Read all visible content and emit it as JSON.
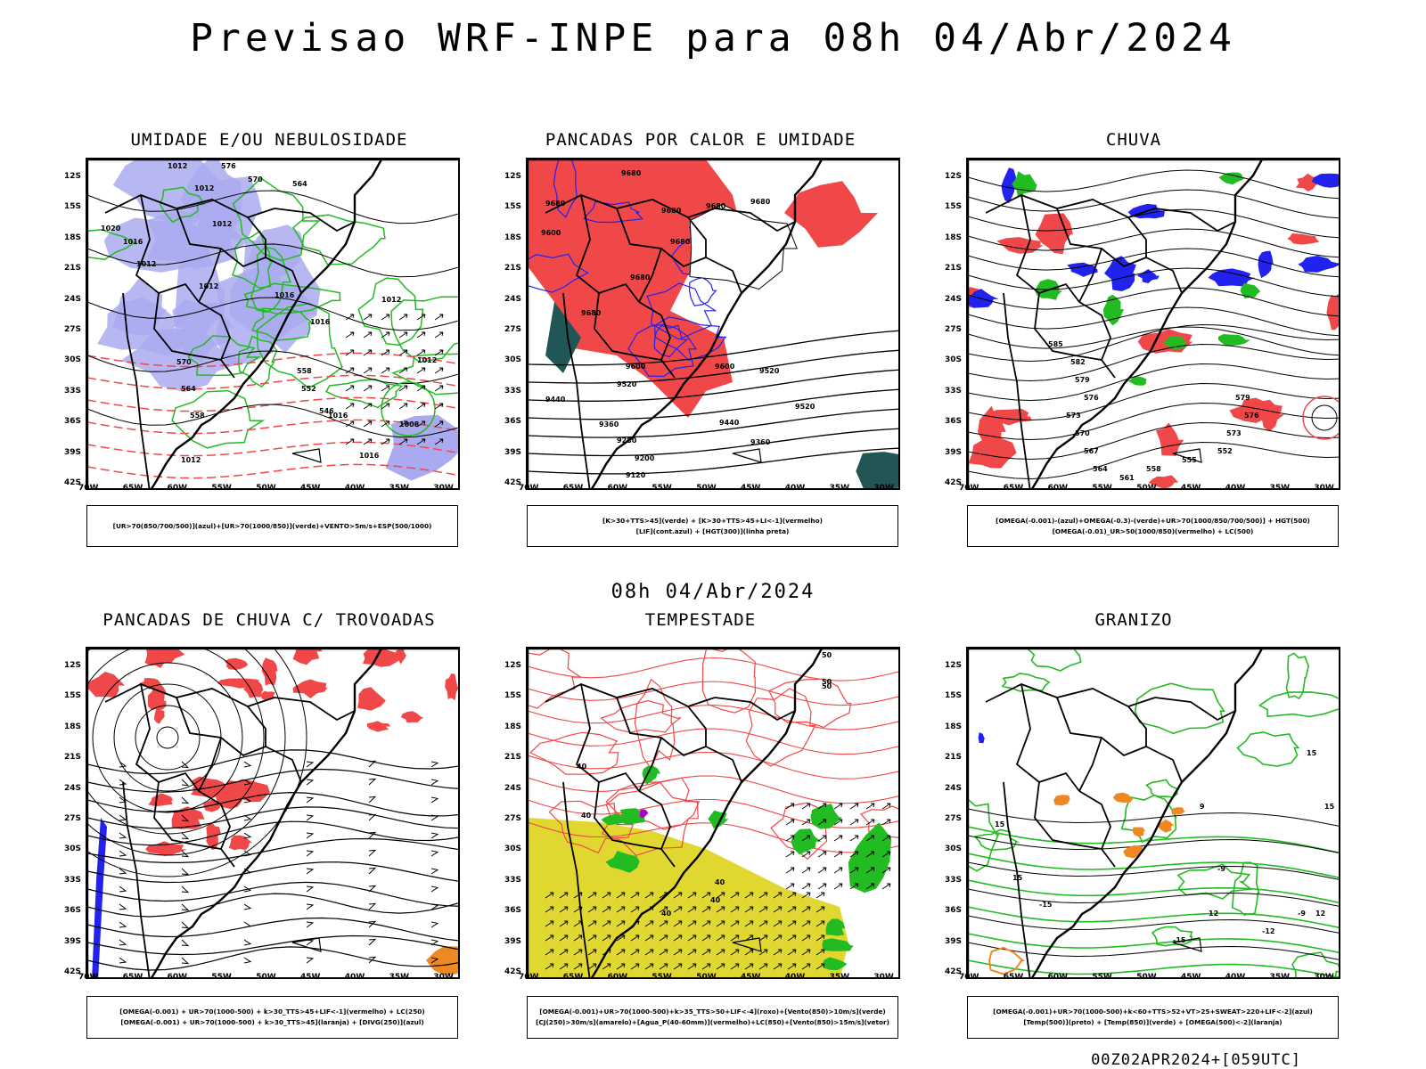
{
  "title": "Previsao WRF-INPE  para 08h 04/Abr/2024",
  "mid_date": "08h 04/Abr/2024",
  "footer": "00Z02APR2024+[059UTC]",
  "lat_ticks": [
    "12S",
    "15S",
    "18S",
    "21S",
    "24S",
    "27S",
    "30S",
    "33S",
    "36S",
    "39S",
    "42S"
  ],
  "lon_ticks": [
    "70W",
    "65W",
    "60W",
    "55W",
    "50W",
    "45W",
    "40W",
    "35W",
    "30W"
  ],
  "panels": [
    {
      "title": "UMIDADE E/OU NEBULOSIDADE",
      "legend": [
        "[UR>70(850/700/500)](azul)+[UR>70(1000/850)](verde)+VENTO>5m/s+ESP(500/1000)"
      ],
      "labels": [
        "1012",
        "1012",
        "1012",
        "1020",
        "1016",
        "1012",
        "1012",
        "1016",
        "1016",
        "1016",
        "1016",
        "1012",
        "1012",
        "1008",
        "1012",
        "576",
        "570",
        "564",
        "558",
        "552",
        "546",
        "570",
        "564",
        "558"
      ]
    },
    {
      "title": "PANCADAS POR CALOR E UMIDADE",
      "legend": [
        "[K>30+TTS>45](verde) + [K>30+TTS>45+LI<-1](vermelho)",
        "[LIF](cont.azul) + [HGT(300)](linha preta)"
      ],
      "labels": [
        "9680",
        "9680",
        "9680",
        "9680",
        "9680",
        "9680",
        "9600",
        "9680",
        "9680",
        "9520",
        "9600",
        "9600",
        "9520",
        "9440",
        "9360",
        "9280",
        "9200",
        "9120",
        "9440",
        "9360",
        "9520"
      ]
    },
    {
      "title": "CHUVA",
      "legend": [
        "[OMEGA(-0.001)-(azul)+OMEGA(-0.3)-(verde)+UR>70(1000/850/700/500)] + HGT(500)",
        "[OMEGA(-0.01)_UR>50(1000/850)(vermelho) + LC(500)"
      ],
      "labels": [
        "585",
        "582",
        "579",
        "576",
        "573",
        "570",
        "567",
        "564",
        "561",
        "558",
        "555",
        "552",
        "579",
        "576",
        "573"
      ]
    },
    {
      "title": "PANCADAS DE CHUVA C/ TROVOADAS",
      "legend": [
        "[OMEGA(-0.001) + UR>70(1000-500) + k>30_TTS>45+LIF<-1](vermelho) + LC(250)",
        "[OMEGA(-0.001) + UR>70(1000-500) + k>30_TTS>45](laranja) + [DIVG(250)](azul)"
      ],
      "labels": []
    },
    {
      "title": "TEMPESTADE",
      "legend": [
        "[OMEGA(-0.001)+UR>70(1000-500)+k>35_TTS>50+LIF<-4](roxo)+[Vento(850)>10m/s](verde)",
        "[CJ(250)>30m/s](amarelo)+[Agua_P(40-60mm)](vermelho)+LC(850)+[Vento(850)>15m/s](vetor)"
      ],
      "labels": [
        "40",
        "40",
        "50",
        "50",
        "40",
        "40",
        "50",
        "40"
      ]
    },
    {
      "title": "GRANIZO",
      "legend": [
        "[OMEGA(-0.001)+UR>70(1000-500)+k<60+TTS>52+VT>25+SWEAT>220+LIF<-2](azul)",
        "[Temp(500)](preto) + [Temp(850)](verde) + [OMEGA(500)<-2](laranja)"
      ],
      "labels": [
        "15",
        "15",
        "15",
        "15",
        "12",
        "12",
        "9",
        "-9",
        "-15",
        "-15",
        "-12",
        "-9"
      ]
    }
  ],
  "colors": {
    "red": "#f04848",
    "green": "#22bb22",
    "blue": "#2222ee",
    "lavender": "#aaaaf0",
    "yellow": "#e0d830",
    "darkteal": "#225555",
    "orange": "#ee8822",
    "purple": "#aa00cc"
  }
}
